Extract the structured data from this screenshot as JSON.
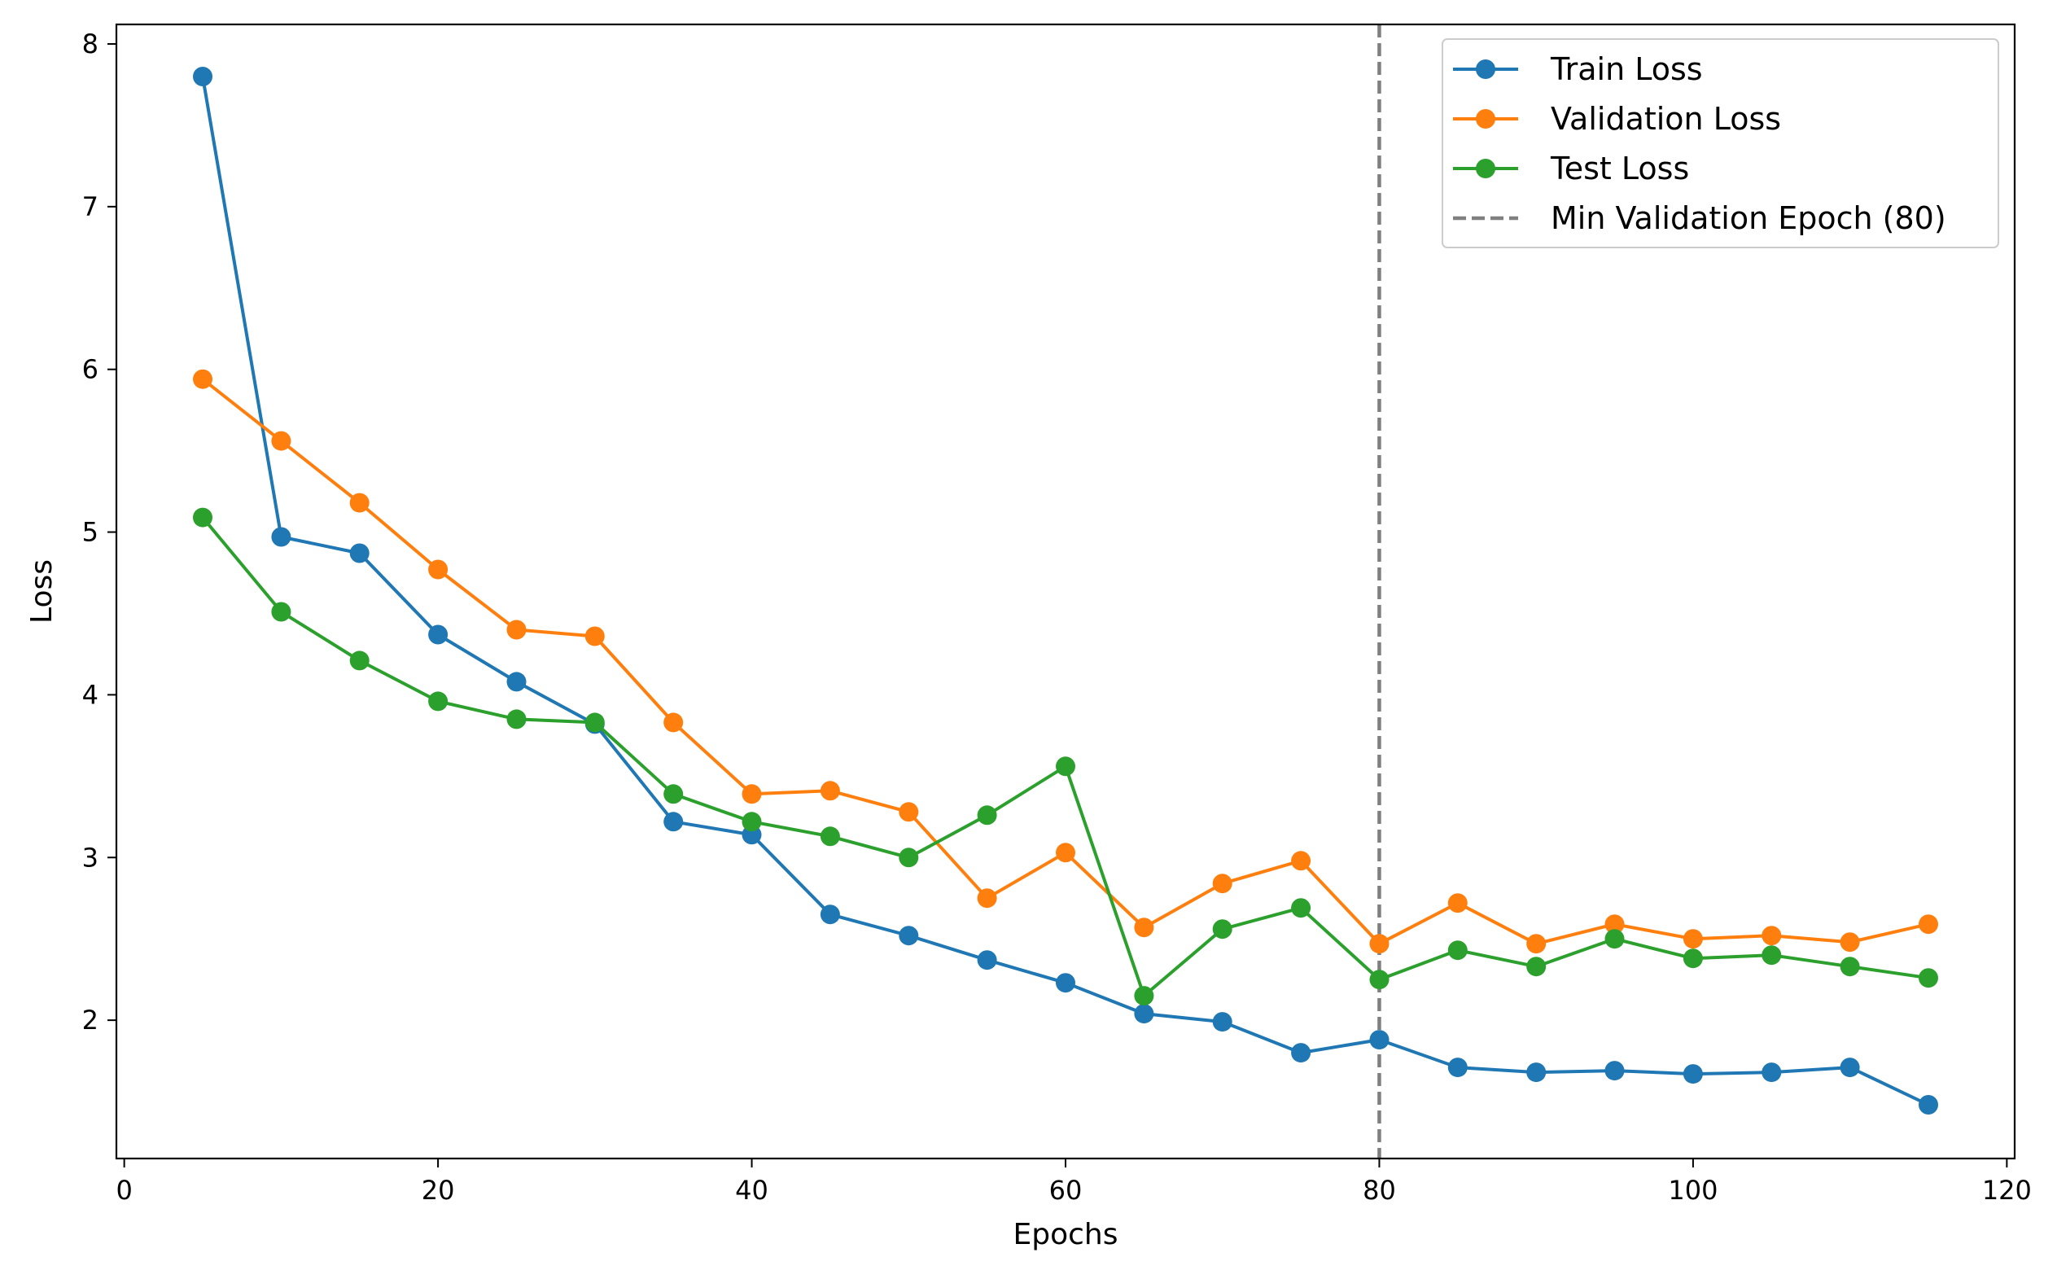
{
  "chart_data": {
    "type": "line",
    "title": "",
    "xlabel": "Epochs",
    "ylabel": "Loss",
    "xlim": [
      -0.5,
      120.5
    ],
    "ylim": [
      1.15,
      8.12
    ],
    "xticks": [
      0,
      20,
      40,
      60,
      80,
      100,
      120
    ],
    "yticks": [
      2,
      3,
      4,
      5,
      6,
      7,
      8
    ],
    "x": [
      5,
      10,
      15,
      20,
      25,
      30,
      35,
      40,
      45,
      50,
      55,
      60,
      65,
      70,
      75,
      80,
      85,
      90,
      95,
      100,
      105,
      110,
      115
    ],
    "series": [
      {
        "name": "Train Loss",
        "color": "#1f77b4",
        "values": [
          7.8,
          4.97,
          4.87,
          4.37,
          4.08,
          3.82,
          3.22,
          3.14,
          2.65,
          2.52,
          2.37,
          2.23,
          2.04,
          1.99,
          1.8,
          1.88,
          1.71,
          1.68,
          1.69,
          1.67,
          1.68,
          1.71,
          1.48
        ]
      },
      {
        "name": "Validation Loss",
        "color": "#ff7f0e",
        "values": [
          5.94,
          5.56,
          5.18,
          4.77,
          4.4,
          4.36,
          3.83,
          3.39,
          3.41,
          3.28,
          2.75,
          3.03,
          2.57,
          2.84,
          2.98,
          2.47,
          2.72,
          2.47,
          2.59,
          2.5,
          2.52,
          2.48,
          2.59
        ]
      },
      {
        "name": "Test Loss",
        "color": "#2ca02c",
        "values": [
          5.09,
          4.51,
          4.21,
          3.96,
          3.85,
          3.83,
          3.39,
          3.22,
          3.13,
          3.0,
          3.26,
          3.56,
          2.15,
          2.56,
          2.69,
          2.25,
          2.43,
          2.33,
          2.5,
          2.38,
          2.4,
          2.33,
          2.26
        ]
      }
    ],
    "vline": {
      "name": "Min Validation Epoch (80)",
      "x": 80,
      "color": "#7f7f7f",
      "style": "dashed"
    },
    "legend": "top-right",
    "grid": false
  }
}
